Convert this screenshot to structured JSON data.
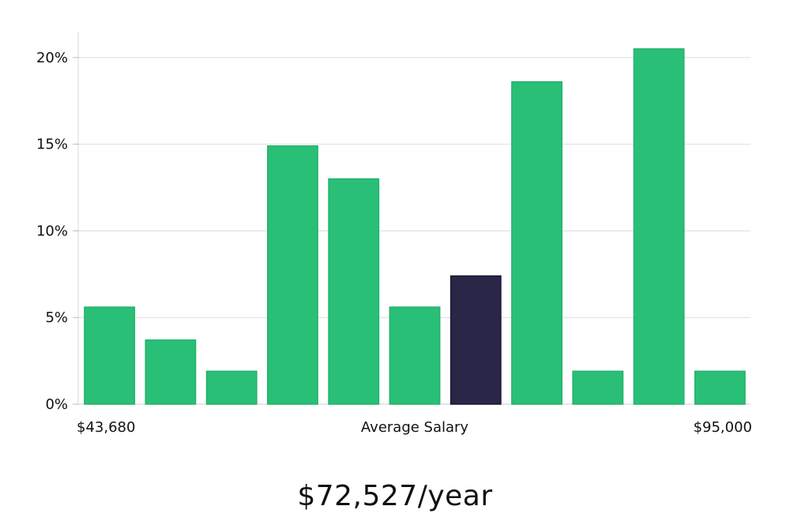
{
  "chart_data": {
    "type": "bar",
    "values": [
      5.6,
      3.7,
      1.9,
      14.9,
      13.0,
      5.6,
      7.4,
      18.6,
      1.9,
      20.5,
      1.9
    ],
    "highlight_index": 6,
    "ylim": [
      0,
      21.5
    ],
    "yticks": [
      0,
      5,
      10,
      15,
      20
    ],
    "ytick_labels": [
      "0%",
      "5%",
      "10%",
      "15%",
      "20%"
    ],
    "xlabel_left": "$43,680",
    "xlabel_center": "Average Salary",
    "xlabel_right": "$95,000",
    "bar_color": "#2abf76",
    "highlight_color": "#292648",
    "grid": true
  },
  "summary": {
    "salary_text": "$72,527/year"
  }
}
